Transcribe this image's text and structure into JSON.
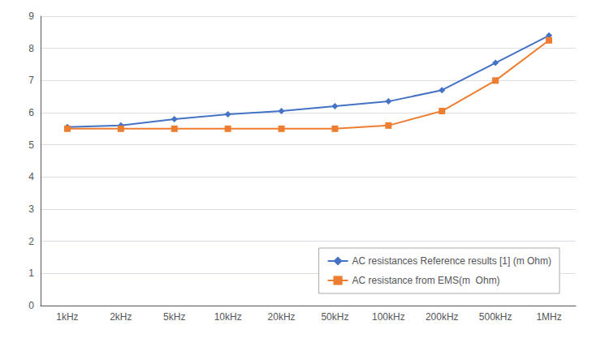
{
  "chart_data": {
    "type": "line",
    "categories": [
      "1kHz",
      "2kHz",
      "5kHz",
      "10kHz",
      "20kHz",
      "50kHz",
      "100kHz",
      "200kHz",
      "500kHz",
      "1MHz"
    ],
    "series": [
      {
        "name": "AC resistances Reference results [1] (m Ohm)",
        "color": "#4472C4",
        "marker": "diamond",
        "values": [
          5.55,
          5.6,
          5.8,
          5.95,
          6.05,
          6.2,
          6.35,
          6.7,
          7.55,
          8.4
        ]
      },
      {
        "name": "AC resistance from EMS(m  Ohm)",
        "color": "#ED7D31",
        "marker": "square",
        "values": [
          5.5,
          5.5,
          5.5,
          5.5,
          5.5,
          5.5,
          5.6,
          6.05,
          7.0,
          8.25
        ]
      }
    ],
    "ylim": [
      0,
      9
    ],
    "yticks": [
      0,
      1,
      2,
      3,
      4,
      5,
      6,
      7,
      8,
      9
    ],
    "grid": true,
    "legend": "lower right"
  }
}
